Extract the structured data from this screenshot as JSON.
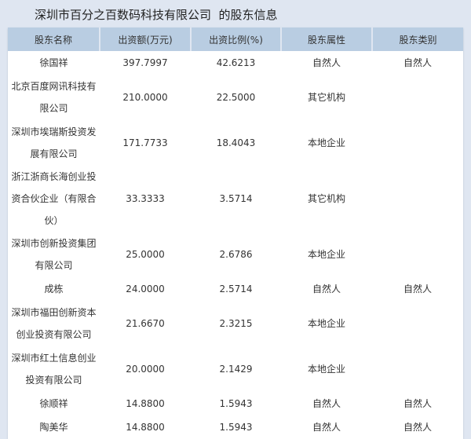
{
  "title": "深圳市百分之百数码科技有限公司  的股东信息",
  "columns": [
    "股东名称",
    "出资额(万元)",
    "出资比例(%)",
    "股东属性",
    "股东类别"
  ],
  "rows": [
    {
      "name": "徐国祥",
      "amount": "397.7997",
      "ratio": "42.6213",
      "attr": "自然人",
      "type": "自然人"
    },
    {
      "name": "北京百度网讯科技有限公司",
      "amount": "210.0000",
      "ratio": "22.5000",
      "attr": "其它机构",
      "type": ""
    },
    {
      "name": "深圳市埃瑞斯投资发展有限公司",
      "amount": "171.7733",
      "ratio": "18.4043",
      "attr": "本地企业",
      "type": ""
    },
    {
      "name": "浙江浙商长海创业投资合伙企业（有限合伙）",
      "amount": "33.3333",
      "ratio": "3.5714",
      "attr": "其它机构",
      "type": ""
    },
    {
      "name": "深圳市创新投资集团有限公司",
      "amount": "25.0000",
      "ratio": "2.6786",
      "attr": "本地企业",
      "type": ""
    },
    {
      "name": "成栋",
      "amount": "24.0000",
      "ratio": "2.5714",
      "attr": "自然人",
      "type": "自然人"
    },
    {
      "name": "深圳市福田创新资本创业投资有限公司",
      "amount": "21.6670",
      "ratio": "2.3215",
      "attr": "本地企业",
      "type": ""
    },
    {
      "name": "深圳市红土信息创业投资有限公司",
      "amount": "20.0000",
      "ratio": "2.1429",
      "attr": "本地企业",
      "type": ""
    },
    {
      "name": "徐顺祥",
      "amount": "14.8800",
      "ratio": "1.5943",
      "attr": "自然人",
      "type": "自然人"
    },
    {
      "name": "陶美华",
      "amount": "14.8800",
      "ratio": "1.5943",
      "attr": "自然人",
      "type": "自然人"
    }
  ]
}
